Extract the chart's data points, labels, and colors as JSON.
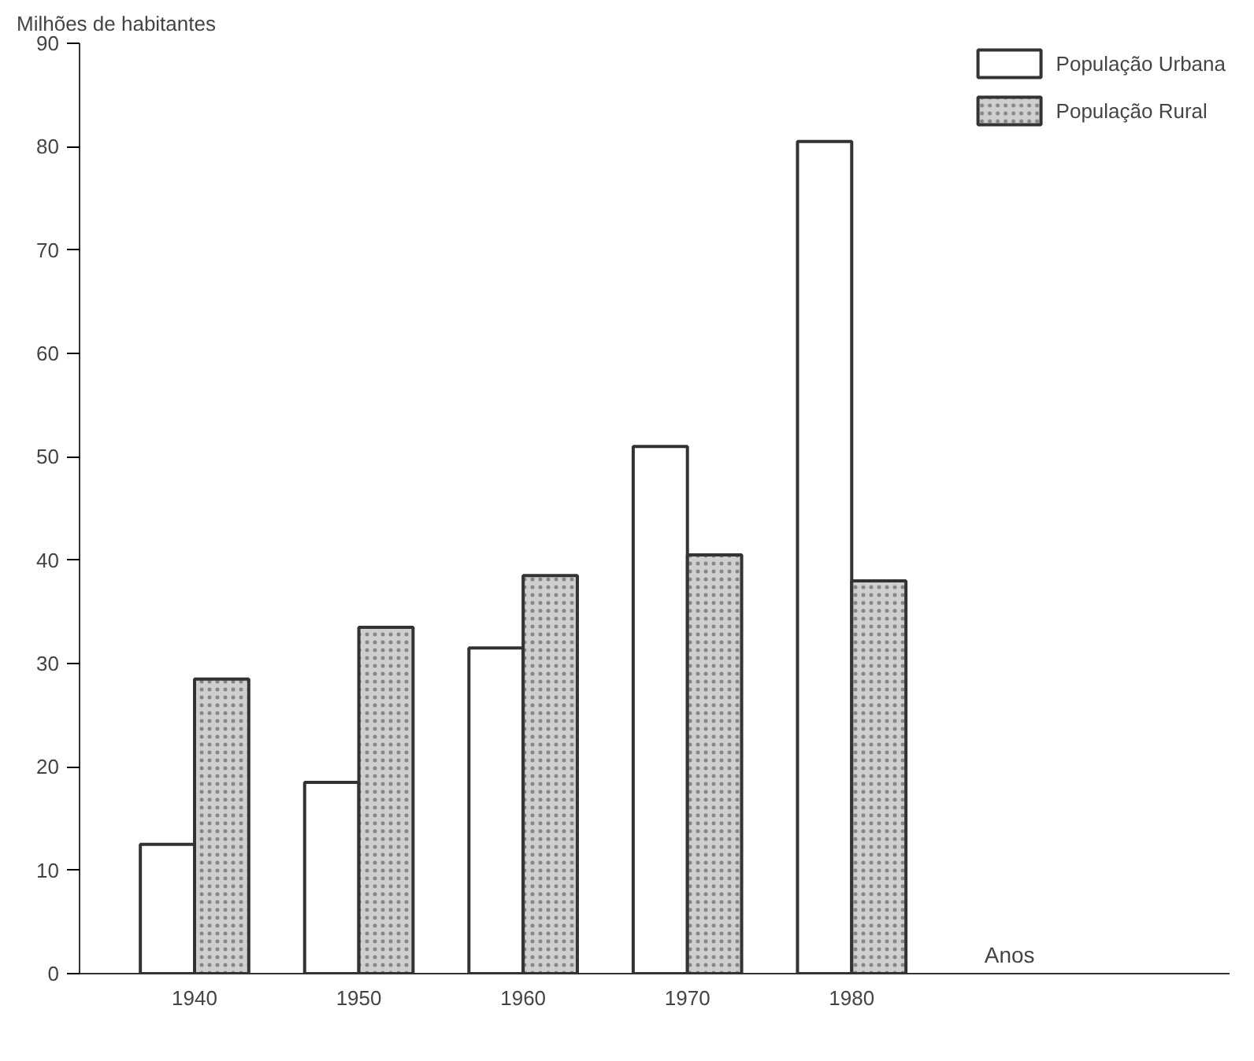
{
  "chart_data": {
    "type": "bar",
    "ylabel": "Milhões de habitantes",
    "xlabel": "Anos",
    "categories": [
      "1940",
      "1950",
      "1960",
      "1970",
      "1980"
    ],
    "series": [
      {
        "name": "População Urbana",
        "color": "#ffffff",
        "values": [
          12.5,
          18.5,
          31.5,
          51,
          80.5
        ]
      },
      {
        "name": "População Rural",
        "color": "#cfcfcf",
        "values": [
          28.5,
          33.5,
          38.5,
          40.5,
          38
        ]
      }
    ],
    "ylim": [
      0,
      90
    ],
    "yticks": [
      0,
      10,
      20,
      30,
      40,
      50,
      60,
      70,
      80,
      90
    ],
    "grid": false,
    "legend": "top right"
  }
}
